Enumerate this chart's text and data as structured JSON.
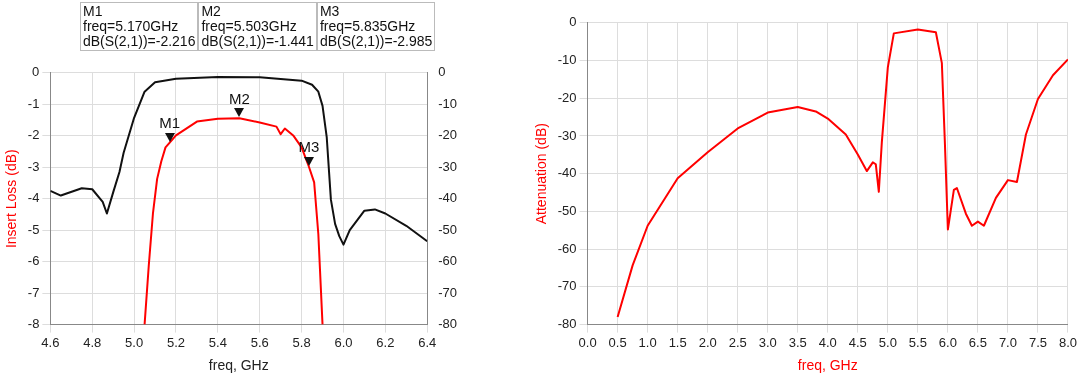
{
  "chart_data": [
    {
      "type": "line",
      "xlabel": "freq, GHz",
      "ylabel": "Insert Loss (dB)",
      "xlim": [
        4.6,
        6.4
      ],
      "xticks": [
        4.6,
        4.8,
        {
          "value": 5.0,
          "label": "5.0"
        },
        5.2,
        5.4,
        5.6,
        5.8,
        {
          "value": 6.0,
          "label": "6.0"
        },
        6.2,
        6.4
      ],
      "ylim": [
        -8,
        0
      ],
      "yticks": [
        -8,
        -7,
        -6,
        -5,
        -4,
        -3,
        -2,
        -1,
        0
      ],
      "y2lim": [
        -80,
        0
      ],
      "y2ticks": [
        -80,
        -70,
        -60,
        -50,
        -40,
        -30,
        -20,
        -10,
        0
      ],
      "grid": true,
      "legend": false,
      "marker": "none",
      "line_style": "solid",
      "series": [
        {
          "color": "#ff0000",
          "axis": "y",
          "x": [
            5.05,
            5.07,
            5.09,
            5.11,
            5.13,
            5.15,
            5.17,
            5.2,
            5.3,
            5.4,
            5.503,
            5.6,
            5.68,
            5.7,
            5.72,
            5.76,
            5.8,
            5.835,
            5.86,
            5.88,
            5.9
          ],
          "values": [
            -8,
            -6.13,
            -4.47,
            -3.37,
            -2.81,
            -2.37,
            -2.216,
            -1.99,
            -1.55,
            -1.46,
            -1.441,
            -1.58,
            -1.71,
            -1.95,
            -1.77,
            -1.99,
            -2.37,
            -2.985,
            -3.48,
            -5.13,
            -8
          ]
        },
        {
          "color": "#111111",
          "axis": "y2",
          "x": [
            4.6,
            4.65,
            4.75,
            4.8,
            4.85,
            4.87,
            4.9,
            4.93,
            4.95,
            5.0,
            5.05,
            5.1,
            5.2,
            5.4,
            5.6,
            5.8,
            5.85,
            5.88,
            5.9,
            5.92,
            5.94,
            5.96,
            5.98,
            6.0,
            6.03,
            6.1,
            6.15,
            6.2,
            6.3,
            6.4
          ],
          "values": [
            -37.5,
            -39,
            -36.7,
            -37,
            -41,
            -44.7,
            -38,
            -31.5,
            -25.4,
            -14.3,
            -6,
            -3,
            -1.9,
            -1.3,
            -1.4,
            -2.5,
            -3.8,
            -6,
            -10.5,
            -20.4,
            -40.3,
            -48,
            -51.9,
            -54.6,
            -50,
            -43.8,
            -43.4,
            -44.7,
            -48.6,
            -53.5
          ]
        }
      ],
      "annotations": [
        "M1\nfreq=5.170GHz\ndB(S(2,1))=-2.216",
        "M2\nfreq=5.503GHz\ndB(S(2,1))=-1.441",
        "M3\nfreq=5.835GHz\ndB(S(2,1))=-2.985",
        {
          "text": "M1",
          "x": 5.17,
          "y": -2.216
        },
        {
          "text": "M2",
          "x": 5.503,
          "y": -1.441
        },
        {
          "text": "M3",
          "x": 5.835,
          "y": -2.985
        }
      ]
    },
    {
      "type": "line",
      "xlabel": "freq, GHz",
      "ylabel": "Attenuation (dB)",
      "xlim": [
        0,
        8
      ],
      "xticks": [
        {
          "value": 0,
          "label": "0.0"
        },
        0.5,
        {
          "value": 1,
          "label": "1.0"
        },
        1.5,
        {
          "value": 2,
          "label": "2.0"
        },
        2.5,
        {
          "value": 3,
          "label": "3.0"
        },
        3.5,
        {
          "value": 4,
          "label": "4.0"
        },
        4.5,
        {
          "value": 5,
          "label": "5.0"
        },
        5.5,
        {
          "value": 6,
          "label": "6.0"
        },
        6.5,
        {
          "value": 7,
          "label": "7.0"
        },
        7.5,
        {
          "value": 8,
          "label": "8.0"
        }
      ],
      "ylim": [
        -80,
        0
      ],
      "yticks": [
        -80,
        -70,
        -60,
        -50,
        -40,
        -30,
        -20,
        -10,
        0
      ],
      "grid": true,
      "legend": false,
      "marker": "none",
      "line_style": "solid",
      "x": [
        0.5,
        0.75,
        1.0,
        1.5,
        2.0,
        2.5,
        3.0,
        3.5,
        3.8,
        4.0,
        4.3,
        4.5,
        4.65,
        4.75,
        4.8,
        4.85,
        4.9,
        5.0,
        5.1,
        5.5,
        5.8,
        5.9,
        5.95,
        6.0,
        6.1,
        6.15,
        6.3,
        6.4,
        6.5,
        6.6,
        6.8,
        7.0,
        7.15,
        7.3,
        7.5,
        7.75,
        8.0
      ],
      "series": [
        {
          "color": "#ff0000",
          "values": [
            -78,
            -64.3,
            -53.8,
            -41.2,
            -34.3,
            -28,
            -23.8,
            -22.3,
            -23.5,
            -25.4,
            -29.6,
            -34.9,
            -39.3,
            -37,
            -37.5,
            -44.8,
            -31.7,
            -11.8,
            -2.8,
            -1.8,
            -2.5,
            -10.7,
            -31.7,
            -54.8,
            -44.3,
            -43.8,
            -50.6,
            -53.8,
            -52.7,
            -53.8,
            -46.4,
            -41.7,
            -42.2,
            -29.6,
            -20.2,
            -13.9,
            -9.7
          ]
        }
      ]
    }
  ]
}
